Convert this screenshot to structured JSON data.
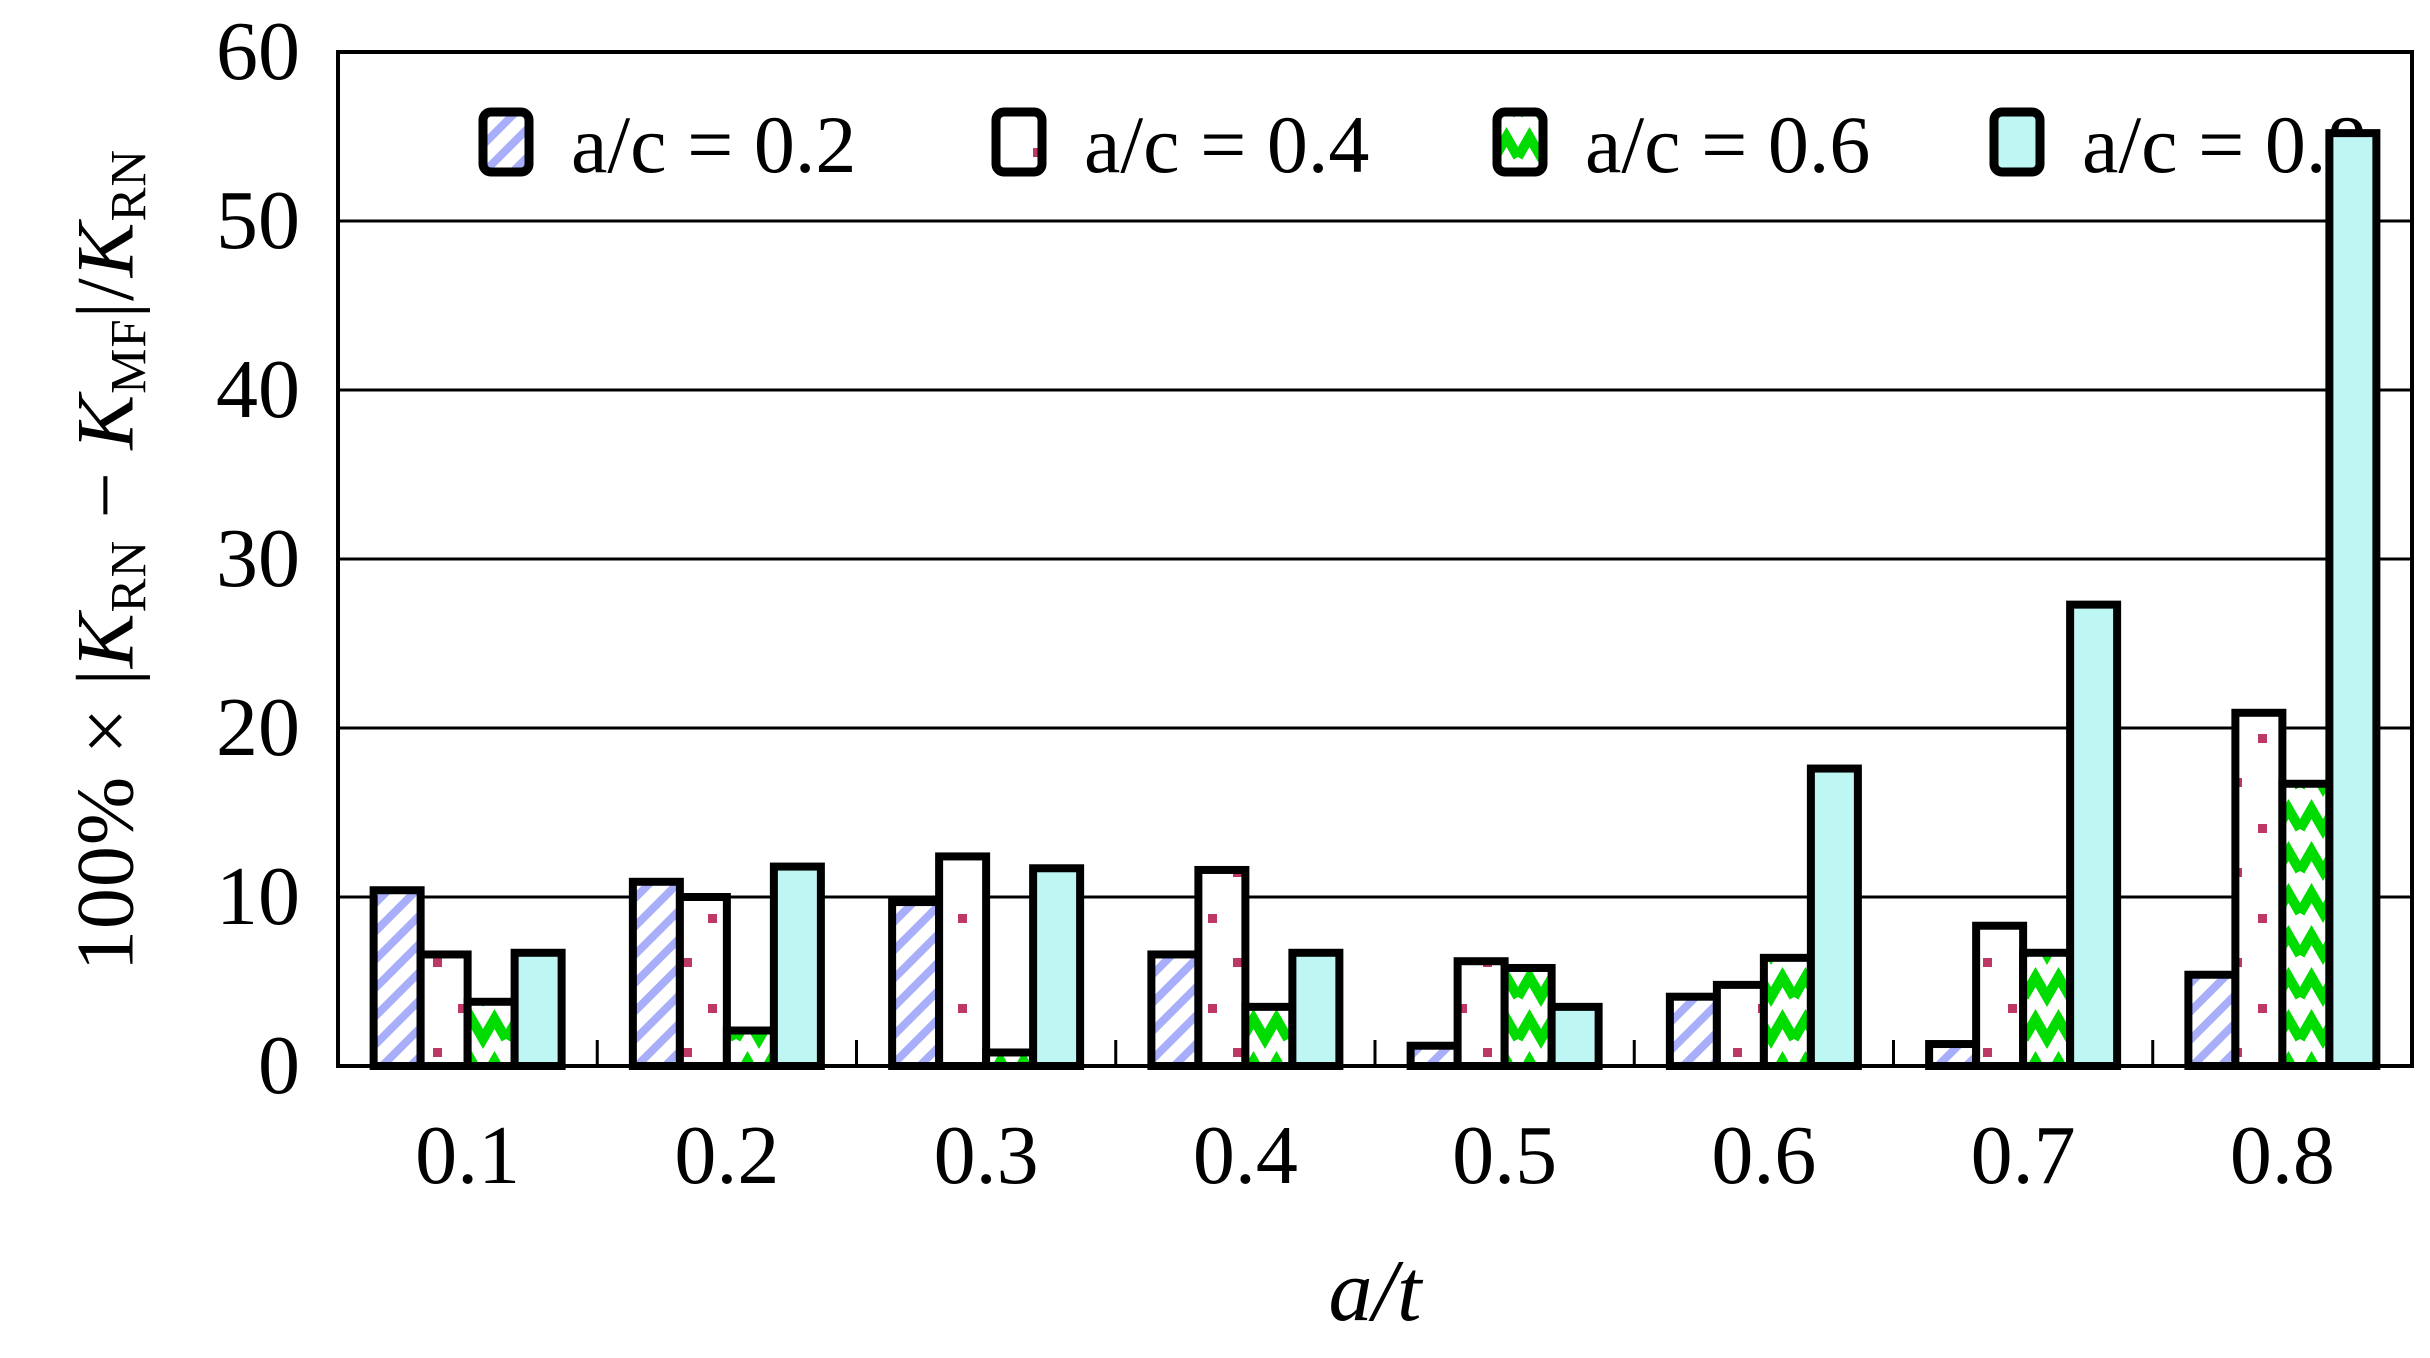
{
  "figure": {
    "background": "#ffffff"
  },
  "chart_data": {
    "type": "bar",
    "title": "",
    "xlabel": "a/t",
    "ylabel": "100% × |K_RN − K_MF|/K_RN",
    "ylabel_parts": [
      {
        "text": "100% × |",
        "style": "plain"
      },
      {
        "text": "K",
        "style": "italic"
      },
      {
        "text": "RN",
        "style": "sub"
      },
      {
        "text": " − ",
        "style": "plain"
      },
      {
        "text": "K",
        "style": "italic"
      },
      {
        "text": "MF",
        "style": "sub"
      },
      {
        "text": "|/",
        "style": "plain"
      },
      {
        "text": "K",
        "style": "italic"
      },
      {
        "text": "RN",
        "style": "sub"
      }
    ],
    "categories": [
      "0.1",
      "0.2",
      "0.3",
      "0.4",
      "0.5",
      "0.6",
      "0.7",
      "0.8"
    ],
    "series": [
      {
        "name": "a/c = 0.2",
        "pattern": "diagonal-hatch",
        "color": "#a9aefb",
        "values": [
          10.4,
          10.9,
          9.7,
          6.6,
          1.2,
          4.1,
          1.3,
          5.4
        ]
      },
      {
        "name": "a/c = 0.4",
        "pattern": "dots",
        "color": "#bd3865",
        "values": [
          6.6,
          10.0,
          12.4,
          11.6,
          6.2,
          4.8,
          8.3,
          20.9
        ]
      },
      {
        "name": "a/c = 0.6",
        "pattern": "chevron",
        "color": "#00dc00",
        "values": [
          3.8,
          2.1,
          0.8,
          3.5,
          5.8,
          6.4,
          6.7,
          16.7
        ]
      },
      {
        "name": "a/c = 0.8",
        "pattern": "solid",
        "color": "#bdf6f2",
        "values": [
          6.7,
          11.8,
          11.7,
          6.7,
          3.5,
          17.6,
          27.3,
          55.2
        ]
      }
    ],
    "ylim": [
      0,
      60
    ],
    "yticks": [
      0,
      10,
      20,
      30,
      40,
      50,
      60
    ],
    "grid": true,
    "gridline_color": "#000000",
    "bar_outline_color": "#000000",
    "legend_position": "top-inside"
  }
}
